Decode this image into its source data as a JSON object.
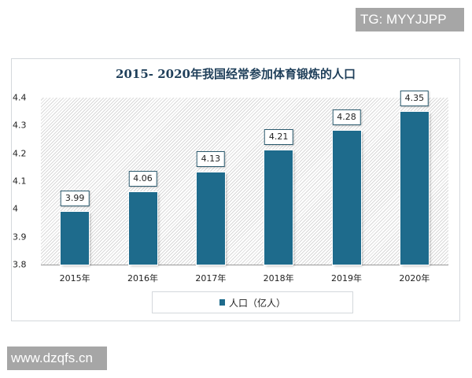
{
  "watermarks": {
    "top": "TG: MYYJJPP",
    "bottom": "www.dzqfs.cn"
  },
  "chart_data": {
    "type": "bar",
    "title": "2015- 2020年我国经常参加体育锻炼的人口",
    "categories": [
      "2015年",
      "2016年",
      "2017年",
      "2018年",
      "2019年",
      "2020年"
    ],
    "series": [
      {
        "name": "人口（亿人）",
        "values": [
          3.99,
          4.06,
          4.13,
          4.21,
          4.28,
          4.35
        ],
        "color": "#1e6b8c"
      }
    ],
    "value_labels": [
      "3.99",
      "4.06",
      "4.13",
      "4.21",
      "4.28",
      "4.35"
    ],
    "xlabel": "",
    "ylabel": "",
    "ylim": [
      3.8,
      4.4
    ],
    "yticks": [
      "4.4",
      "4.3",
      "4.2",
      "4.1",
      "4",
      "3.9",
      "3.8"
    ],
    "grid": false,
    "legend_position": "bottom",
    "plot_background": "diagonal-hatch"
  },
  "legend": {
    "label": "人口（亿人）"
  }
}
